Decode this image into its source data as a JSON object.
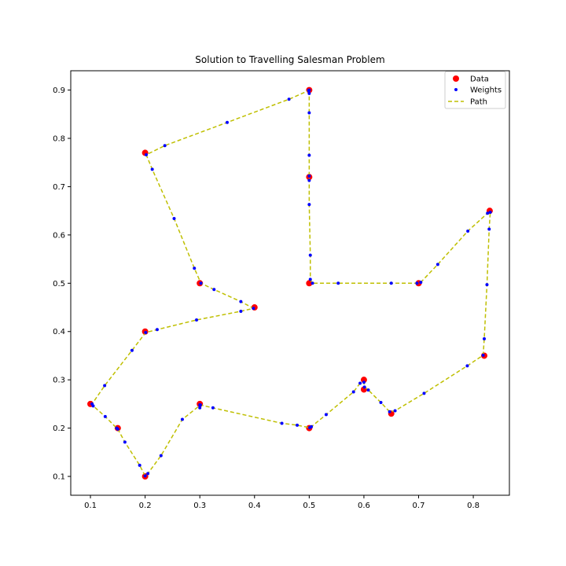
{
  "chart_data": {
    "type": "scatter",
    "title": "Solution to Travelling Salesman Problem",
    "xlabel": "",
    "ylabel": "",
    "xlim": [
      0.064,
      0.866
    ],
    "ylim": [
      0.061,
      0.94
    ],
    "x_ticks": [
      {
        "value": 0.1,
        "label": "0.1"
      },
      {
        "value": 0.2,
        "label": "0.2"
      },
      {
        "value": 0.3,
        "label": "0.3"
      },
      {
        "value": 0.4,
        "label": "0.4"
      },
      {
        "value": 0.5,
        "label": "0.5"
      },
      {
        "value": 0.6,
        "label": "0.6"
      },
      {
        "value": 0.7,
        "label": "0.7"
      },
      {
        "value": 0.8,
        "label": "0.8"
      }
    ],
    "y_ticks": [
      {
        "value": 0.1,
        "label": "0.1"
      },
      {
        "value": 0.2,
        "label": "0.2"
      },
      {
        "value": 0.3,
        "label": "0.3"
      },
      {
        "value": 0.4,
        "label": "0.4"
      },
      {
        "value": 0.5,
        "label": "0.5"
      },
      {
        "value": 0.6,
        "label": "0.6"
      },
      {
        "value": 0.7,
        "label": "0.7"
      },
      {
        "value": 0.8,
        "label": "0.8"
      },
      {
        "value": 0.9,
        "label": "0.9"
      }
    ],
    "grid": false,
    "legend_position": "top-right",
    "series": [
      {
        "name": "Data",
        "kind": "scatter",
        "color": "#ff0000",
        "points": [
          [
            0.5,
            0.9
          ],
          [
            0.5,
            0.72
          ],
          [
            0.5,
            0.5
          ],
          [
            0.7,
            0.5
          ],
          [
            0.83,
            0.65
          ],
          [
            0.82,
            0.35
          ],
          [
            0.65,
            0.23
          ],
          [
            0.6,
            0.3
          ],
          [
            0.6,
            0.28
          ],
          [
            0.5,
            0.2
          ],
          [
            0.3,
            0.25
          ],
          [
            0.2,
            0.1
          ],
          [
            0.15,
            0.2
          ],
          [
            0.1,
            0.25
          ],
          [
            0.2,
            0.4
          ],
          [
            0.4,
            0.45
          ],
          [
            0.3,
            0.5
          ],
          [
            0.2,
            0.77
          ]
        ]
      },
      {
        "name": "Weights",
        "kind": "scatter",
        "color": "#0000ff",
        "points": [
          [
            0.5,
            0.9
          ],
          [
            0.5,
            0.893
          ],
          [
            0.5,
            0.853
          ],
          [
            0.5,
            0.765
          ],
          [
            0.5,
            0.722
          ],
          [
            0.5,
            0.713
          ],
          [
            0.5,
            0.663
          ],
          [
            0.502,
            0.558
          ],
          [
            0.502,
            0.508
          ],
          [
            0.506,
            0.5
          ],
          [
            0.553,
            0.5
          ],
          [
            0.65,
            0.5
          ],
          [
            0.697,
            0.5
          ],
          [
            0.704,
            0.502
          ],
          [
            0.735,
            0.539
          ],
          [
            0.79,
            0.608
          ],
          [
            0.826,
            0.645
          ],
          [
            0.831,
            0.647
          ],
          [
            0.829,
            0.612
          ],
          [
            0.825,
            0.497
          ],
          [
            0.82,
            0.385
          ],
          [
            0.818,
            0.351
          ],
          [
            0.789,
            0.329
          ],
          [
            0.71,
            0.272
          ],
          [
            0.657,
            0.236
          ],
          [
            0.647,
            0.234
          ],
          [
            0.631,
            0.253
          ],
          [
            0.608,
            0.279
          ],
          [
            0.601,
            0.285
          ],
          [
            0.6,
            0.295
          ],
          [
            0.593,
            0.293
          ],
          [
            0.581,
            0.275
          ],
          [
            0.531,
            0.228
          ],
          [
            0.504,
            0.203
          ],
          [
            0.501,
            0.201
          ],
          [
            0.478,
            0.206
          ],
          [
            0.45,
            0.21
          ],
          [
            0.3,
            0.242
          ],
          [
            0.3,
            0.248
          ],
          [
            0.324,
            0.242
          ],
          [
            0.301,
            0.248
          ],
          [
            0.268,
            0.218
          ],
          [
            0.229,
            0.143
          ],
          [
            0.205,
            0.106
          ],
          [
            0.2,
            0.101
          ],
          [
            0.19,
            0.123
          ],
          [
            0.163,
            0.171
          ],
          [
            0.15,
            0.198
          ],
          [
            0.148,
            0.2
          ],
          [
            0.127,
            0.224
          ],
          [
            0.105,
            0.246
          ],
          [
            0.103,
            0.25
          ],
          [
            0.126,
            0.288
          ],
          [
            0.176,
            0.361
          ],
          [
            0.201,
            0.398
          ],
          [
            0.222,
            0.404
          ],
          [
            0.294,
            0.424
          ],
          [
            0.375,
            0.442
          ],
          [
            0.398,
            0.448
          ],
          [
            0.375,
            0.462
          ],
          [
            0.326,
            0.487
          ],
          [
            0.302,
            0.5
          ],
          [
            0.29,
            0.531
          ],
          [
            0.253,
            0.634
          ],
          [
            0.213,
            0.736
          ],
          [
            0.202,
            0.766
          ],
          [
            0.236,
            0.785
          ],
          [
            0.35,
            0.833
          ],
          [
            0.463,
            0.881
          ],
          [
            0.499,
            0.899
          ]
        ]
      },
      {
        "name": "Path",
        "kind": "line",
        "color": "#bfbf00",
        "dashed": true,
        "points": [
          [
            0.5,
            0.9
          ],
          [
            0.5,
            0.893
          ],
          [
            0.5,
            0.853
          ],
          [
            0.5,
            0.765
          ],
          [
            0.5,
            0.722
          ],
          [
            0.5,
            0.713
          ],
          [
            0.5,
            0.663
          ],
          [
            0.502,
            0.558
          ],
          [
            0.502,
            0.508
          ],
          [
            0.506,
            0.5
          ],
          [
            0.553,
            0.5
          ],
          [
            0.65,
            0.5
          ],
          [
            0.697,
            0.5
          ],
          [
            0.704,
            0.502
          ],
          [
            0.735,
            0.539
          ],
          [
            0.79,
            0.608
          ],
          [
            0.826,
            0.645
          ],
          [
            0.831,
            0.647
          ],
          [
            0.829,
            0.612
          ],
          [
            0.825,
            0.497
          ],
          [
            0.82,
            0.385
          ],
          [
            0.818,
            0.351
          ],
          [
            0.789,
            0.329
          ],
          [
            0.71,
            0.272
          ],
          [
            0.657,
            0.236
          ],
          [
            0.647,
            0.234
          ],
          [
            0.631,
            0.253
          ],
          [
            0.608,
            0.279
          ],
          [
            0.601,
            0.285
          ],
          [
            0.6,
            0.295
          ],
          [
            0.593,
            0.293
          ],
          [
            0.581,
            0.275
          ],
          [
            0.531,
            0.228
          ],
          [
            0.504,
            0.203
          ],
          [
            0.501,
            0.201
          ],
          [
            0.478,
            0.206
          ],
          [
            0.45,
            0.21
          ],
          [
            0.324,
            0.242
          ],
          [
            0.301,
            0.248
          ],
          [
            0.268,
            0.218
          ],
          [
            0.229,
            0.143
          ],
          [
            0.205,
            0.106
          ],
          [
            0.2,
            0.101
          ],
          [
            0.19,
            0.123
          ],
          [
            0.163,
            0.171
          ],
          [
            0.15,
            0.198
          ],
          [
            0.148,
            0.2
          ],
          [
            0.127,
            0.224
          ],
          [
            0.105,
            0.246
          ],
          [
            0.103,
            0.25
          ],
          [
            0.126,
            0.288
          ],
          [
            0.176,
            0.361
          ],
          [
            0.201,
            0.398
          ],
          [
            0.222,
            0.404
          ],
          [
            0.294,
            0.424
          ],
          [
            0.375,
            0.442
          ],
          [
            0.398,
            0.448
          ],
          [
            0.375,
            0.462
          ],
          [
            0.326,
            0.487
          ],
          [
            0.302,
            0.5
          ],
          [
            0.29,
            0.531
          ],
          [
            0.253,
            0.634
          ],
          [
            0.213,
            0.736
          ],
          [
            0.202,
            0.766
          ],
          [
            0.236,
            0.785
          ],
          [
            0.35,
            0.833
          ],
          [
            0.463,
            0.881
          ],
          [
            0.499,
            0.899
          ],
          [
            0.5,
            0.9
          ]
        ]
      }
    ],
    "legend": {
      "entries": [
        "Data",
        "Weights",
        "Path"
      ]
    }
  }
}
